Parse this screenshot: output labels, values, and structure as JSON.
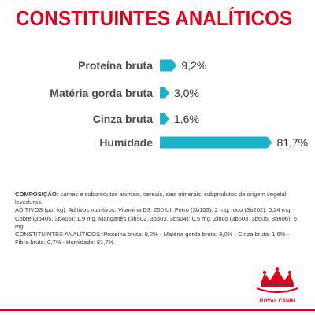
{
  "chart_data": {
    "type": "bar",
    "orientation": "horizontal",
    "title": "CONSTITUINTES ANALÍTICOS",
    "categories": [
      "Proteína bruta",
      "Matéria gorda bruta",
      "Cinza bruta",
      "Humidade"
    ],
    "values": [
      9.2,
      3.0,
      1.6,
      81.7
    ],
    "value_labels": [
      "9,2%",
      "3,0%",
      "1,6%",
      "81,7%"
    ],
    "xlabel": "",
    "ylabel": "",
    "xlim": [
      0,
      100
    ],
    "grid": false,
    "legend": "none"
  },
  "footnote": {
    "composition_label": "COMPOSIÇÃO:",
    "composition_text": " carnes e subprodutos animais, cereais, sais minerais, subprodutos de origem vegetal, leveduras.",
    "additives_text": "ADITIVOS (por kg): Aditivos nutritivos: Vitamina D3: 250 UI, Ferro (3b103): 2 mg, Iodo (3b202): 0,24 mg, Cobre (3b405, 3b406): 1,9 mg, Manganês (3b502, 3b503, 3b504): 0,5 mg, Zinco (3b603, 3b605, 3b606): 5 mg.",
    "constituents_text": "CONSTITUINTES ANALÍTICOS: Proteína bruta: 9,2% - Matéria gorda bruta: 3,0% - Cinza bruta: 1,6% - Fibra bruta: 0,7% - Humidade: 81,7%."
  },
  "colors": {
    "title": "#e2001a",
    "bar": "#19b2c8",
    "label": "#4b4b4b",
    "value": "#333333",
    "rule": "#e2001a"
  },
  "logo": {
    "icon": "crown-icon",
    "brand_text": "ROYAL CANIN"
  }
}
